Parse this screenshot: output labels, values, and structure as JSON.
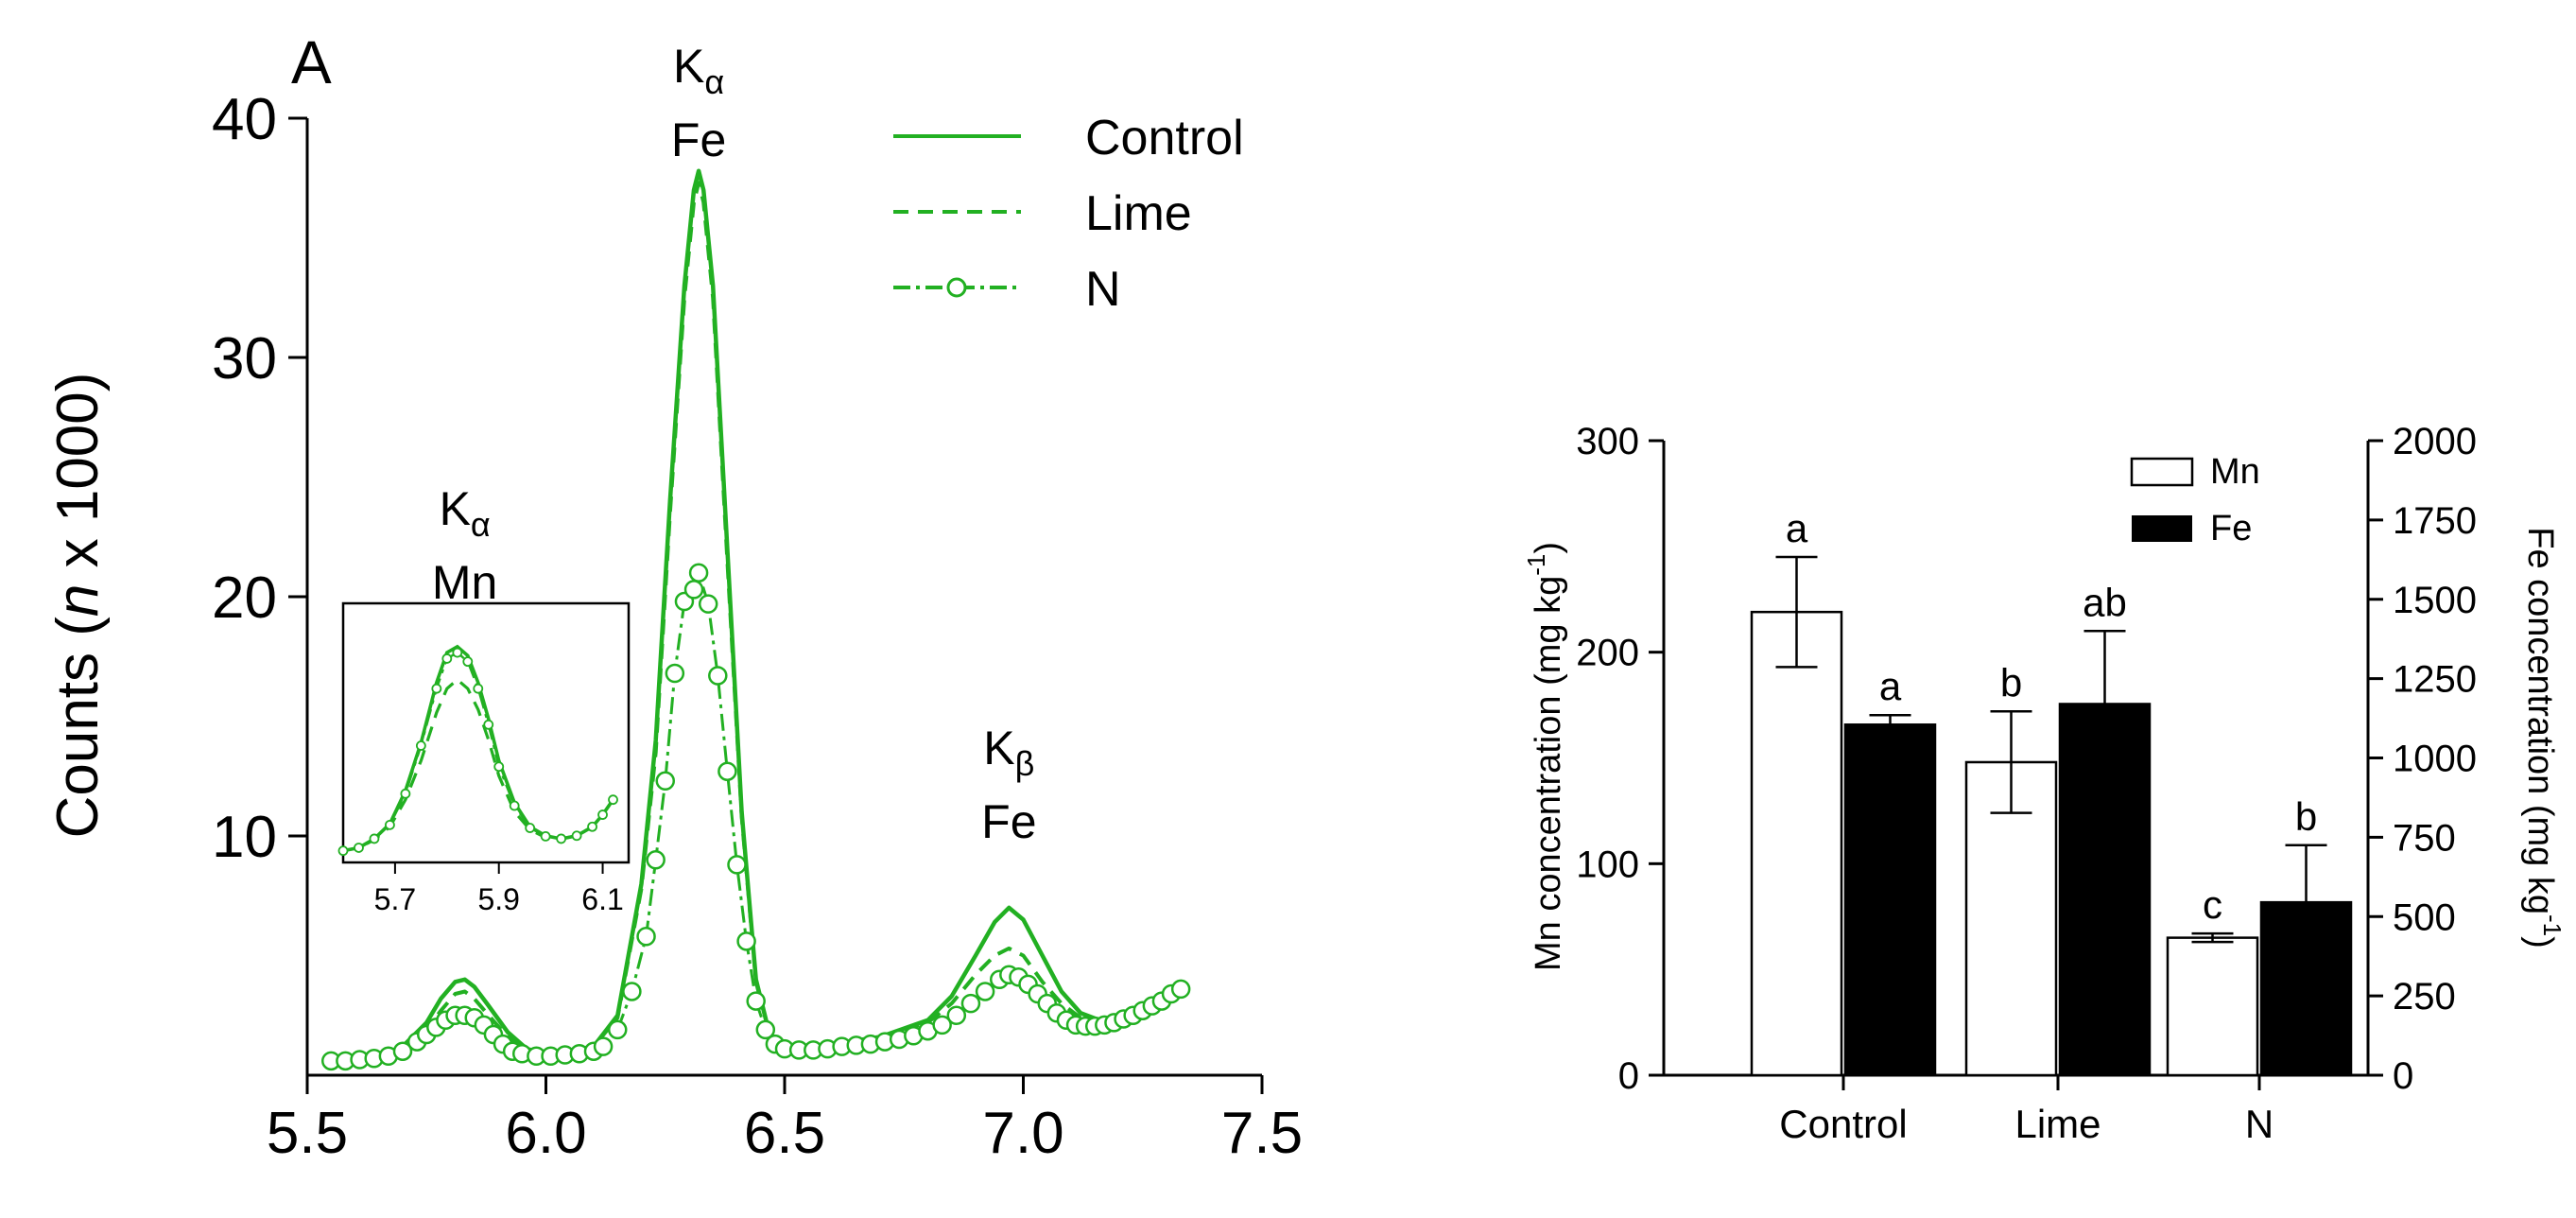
{
  "colors": {
    "green": "#22b022",
    "black": "#000000",
    "white": "#ffffff"
  },
  "chart_data": [
    {
      "type": "line",
      "panel_label": "A",
      "title": "",
      "xlabel": "",
      "ylabel_pre": "Counts (",
      "ylabel_italic": "n",
      "ylabel_post": " x 1000)",
      "xlim": [
        5.5,
        7.5
      ],
      "ylim": [
        0,
        40
      ],
      "xticks": [
        "5.5",
        "6.0",
        "6.5",
        "7.0",
        "7.5"
      ],
      "yticks": [
        "10",
        "20",
        "30",
        "40"
      ],
      "annotations": [
        {
          "main": "K",
          "sub": "α",
          "element": "Mn",
          "x": 5.83,
          "y": 23
        },
        {
          "main": "K",
          "sub": "α",
          "element": "Fe",
          "x": 6.32,
          "y": 41.5
        },
        {
          "main": "K",
          "sub": "β",
          "element": "Fe",
          "x": 6.97,
          "y": 13
        }
      ],
      "legend": [
        "Control",
        "Lime",
        "N"
      ],
      "series": [
        {
          "name": "Control",
          "style": "solid",
          "x": [
            5.55,
            5.6,
            5.65,
            5.7,
            5.75,
            5.78,
            5.81,
            5.83,
            5.85,
            5.88,
            5.92,
            5.96,
            6.0,
            6.05,
            6.1,
            6.15,
            6.2,
            6.23,
            6.26,
            6.29,
            6.31,
            6.32,
            6.33,
            6.35,
            6.38,
            6.41,
            6.44,
            6.47,
            6.5,
            6.55,
            6.6,
            6.7,
            6.8,
            6.85,
            6.9,
            6.94,
            6.97,
            7.0,
            7.04,
            7.08,
            7.12,
            7.16,
            7.2,
            7.25,
            7.3,
            7.33
          ],
          "y": [
            0.6,
            0.65,
            0.8,
            1.2,
            2.2,
            3.2,
            3.9,
            4.0,
            3.7,
            2.9,
            1.8,
            1.1,
            0.9,
            1.0,
            1.2,
            2.5,
            8,
            14,
            24,
            33,
            37,
            37.8,
            37,
            33,
            22,
            11,
            4,
            1.6,
            1.2,
            1.2,
            1.3,
            1.6,
            2.3,
            3.3,
            5.0,
            6.4,
            7.0,
            6.5,
            5.0,
            3.5,
            2.6,
            2.3,
            2.4,
            2.8,
            3.4,
            3.8
          ]
        },
        {
          "name": "Lime",
          "style": "dashed",
          "x": [
            5.55,
            5.6,
            5.65,
            5.7,
            5.75,
            5.78,
            5.81,
            5.83,
            5.85,
            5.88,
            5.92,
            5.96,
            6.0,
            6.05,
            6.1,
            6.15,
            6.2,
            6.23,
            6.26,
            6.29,
            6.31,
            6.32,
            6.33,
            6.35,
            6.38,
            6.41,
            6.44,
            6.47,
            6.5,
            6.55,
            6.6,
            6.7,
            6.8,
            6.85,
            6.9,
            6.94,
            6.97,
            7.0,
            7.04,
            7.08,
            7.12,
            7.16,
            7.2,
            7.25,
            7.3,
            7.33
          ],
          "y": [
            0.6,
            0.65,
            0.8,
            1.1,
            1.9,
            2.7,
            3.4,
            3.5,
            3.2,
            2.5,
            1.6,
            1.0,
            0.9,
            1.0,
            1.2,
            2.4,
            7.8,
            13.5,
            23.5,
            32.5,
            36.5,
            37.3,
            36.5,
            32.5,
            21.5,
            10.8,
            3.9,
            1.6,
            1.2,
            1.2,
            1.3,
            1.6,
            2.2,
            3.0,
            4.2,
            5.0,
            5.3,
            5.0,
            3.9,
            3.0,
            2.4,
            2.2,
            2.3,
            2.7,
            3.3,
            3.7
          ]
        },
        {
          "name": "N",
          "style": "dashdot-circles",
          "x": [
            5.55,
            5.58,
            5.61,
            5.64,
            5.67,
            5.7,
            5.73,
            5.75,
            5.77,
            5.79,
            5.81,
            5.83,
            5.85,
            5.87,
            5.89,
            5.91,
            5.93,
            5.95,
            5.98,
            6.01,
            6.04,
            6.07,
            6.1,
            6.12,
            6.15,
            6.18,
            6.21,
            6.23,
            6.25,
            6.27,
            6.29,
            6.31,
            6.32,
            6.34,
            6.36,
            6.38,
            6.4,
            6.42,
            6.44,
            6.46,
            6.48,
            6.5,
            6.53,
            6.56,
            6.59,
            6.62,
            6.65,
            6.68,
            6.71,
            6.74,
            6.77,
            6.8,
            6.83,
            6.86,
            6.89,
            6.92,
            6.95,
            6.97,
            6.99,
            7.01,
            7.03,
            7.05,
            7.07,
            7.09,
            7.11,
            7.13,
            7.15,
            7.17,
            7.19,
            7.21,
            7.23,
            7.25,
            7.27,
            7.29,
            7.31,
            7.33
          ],
          "y": [
            0.6,
            0.6,
            0.65,
            0.7,
            0.8,
            1.0,
            1.4,
            1.7,
            2.0,
            2.3,
            2.5,
            2.5,
            2.4,
            2.1,
            1.7,
            1.3,
            1.0,
            0.9,
            0.8,
            0.8,
            0.85,
            0.9,
            1.0,
            1.2,
            1.9,
            3.5,
            5.8,
            9.0,
            12.3,
            16.8,
            19.8,
            20.3,
            21.0,
            19.7,
            16.7,
            12.7,
            8.8,
            5.6,
            3.1,
            1.9,
            1.3,
            1.1,
            1.05,
            1.05,
            1.1,
            1.2,
            1.25,
            1.3,
            1.4,
            1.5,
            1.65,
            1.85,
            2.1,
            2.5,
            3.0,
            3.5,
            4.0,
            4.2,
            4.1,
            3.8,
            3.4,
            3.0,
            2.6,
            2.3,
            2.1,
            2.05,
            2.05,
            2.1,
            2.2,
            2.35,
            2.5,
            2.7,
            2.9,
            3.1,
            3.4,
            3.6
          ]
        }
      ],
      "inset": {
        "xlim": [
          5.6,
          6.15
        ],
        "xticks": [
          "5.7",
          "5.9",
          "6.1"
        ],
        "series": [
          {
            "name": "Control",
            "style": "solid",
            "x": [
              5.6,
              5.63,
              5.66,
              5.69,
              5.72,
              5.75,
              5.78,
              5.8,
              5.82,
              5.84,
              5.86,
              5.88,
              5.9,
              5.93,
              5.96,
              5.99,
              6.02,
              6.05,
              6.08,
              6.1,
              6.12
            ],
            "y": [
              0.6,
              0.65,
              0.8,
              1.05,
              1.6,
              2.4,
              3.4,
              3.9,
              4.0,
              3.85,
              3.4,
              2.8,
              2.1,
              1.4,
              1.0,
              0.85,
              0.8,
              0.85,
              1.0,
              1.2,
              1.45
            ]
          },
          {
            "name": "Lime",
            "style": "dashed",
            "x": [
              5.6,
              5.63,
              5.66,
              5.69,
              5.72,
              5.75,
              5.78,
              5.8,
              5.82,
              5.84,
              5.86,
              5.88,
              5.9,
              5.93,
              5.96,
              5.99,
              6.02,
              6.05,
              6.08,
              6.1,
              6.12
            ],
            "y": [
              0.6,
              0.65,
              0.78,
              1.0,
              1.45,
              2.1,
              2.9,
              3.3,
              3.45,
              3.3,
              2.95,
              2.45,
              1.85,
              1.25,
              0.95,
              0.82,
              0.8,
              0.85,
              1.0,
              1.2,
              1.45
            ]
          },
          {
            "name": "N",
            "style": "dashdot-circles",
            "x": [
              5.6,
              5.63,
              5.66,
              5.69,
              5.72,
              5.75,
              5.78,
              5.8,
              5.82,
              5.84,
              5.86,
              5.88,
              5.9,
              5.93,
              5.96,
              5.99,
              6.02,
              6.05,
              6.08,
              6.1,
              6.12
            ],
            "y": [
              0.6,
              0.65,
              0.8,
              1.03,
              1.55,
              2.35,
              3.3,
              3.8,
              3.9,
              3.75,
              3.3,
              2.7,
              2.0,
              1.35,
              0.98,
              0.84,
              0.8,
              0.85,
              1.0,
              1.2,
              1.45
            ]
          }
        ]
      }
    },
    {
      "type": "bar",
      "title": "",
      "categories": [
        "Control",
        "Lime",
        "N"
      ],
      "ylabel": "Mn concentration (mg kg",
      "ylabel_sup": "-1",
      "ylabel_close": ")",
      "y2label": "Fe concentration (mg kg",
      "y2label_sup": "-1",
      "y2label_close": ")",
      "ylim": [
        0,
        300
      ],
      "y2lim": [
        0,
        2000
      ],
      "yticks": [
        "0",
        "100",
        "200",
        "300"
      ],
      "y2ticks": [
        "0",
        "250",
        "500",
        "750",
        "1000",
        "1250",
        "1500",
        "1750",
        "2000"
      ],
      "legend": [
        "Mn",
        "Fe"
      ],
      "series": [
        {
          "name": "Mn",
          "axis": "left",
          "values": [
            219,
            148,
            65
          ],
          "errors": [
            26,
            24,
            2
          ],
          "letters": [
            "a",
            "b",
            "c"
          ]
        },
        {
          "name": "Fe",
          "axis": "right",
          "values": [
            1105,
            1170,
            545
          ],
          "errors": [
            30,
            230,
            180
          ],
          "letters": [
            "a",
            "ab",
            "b"
          ]
        }
      ]
    }
  ]
}
